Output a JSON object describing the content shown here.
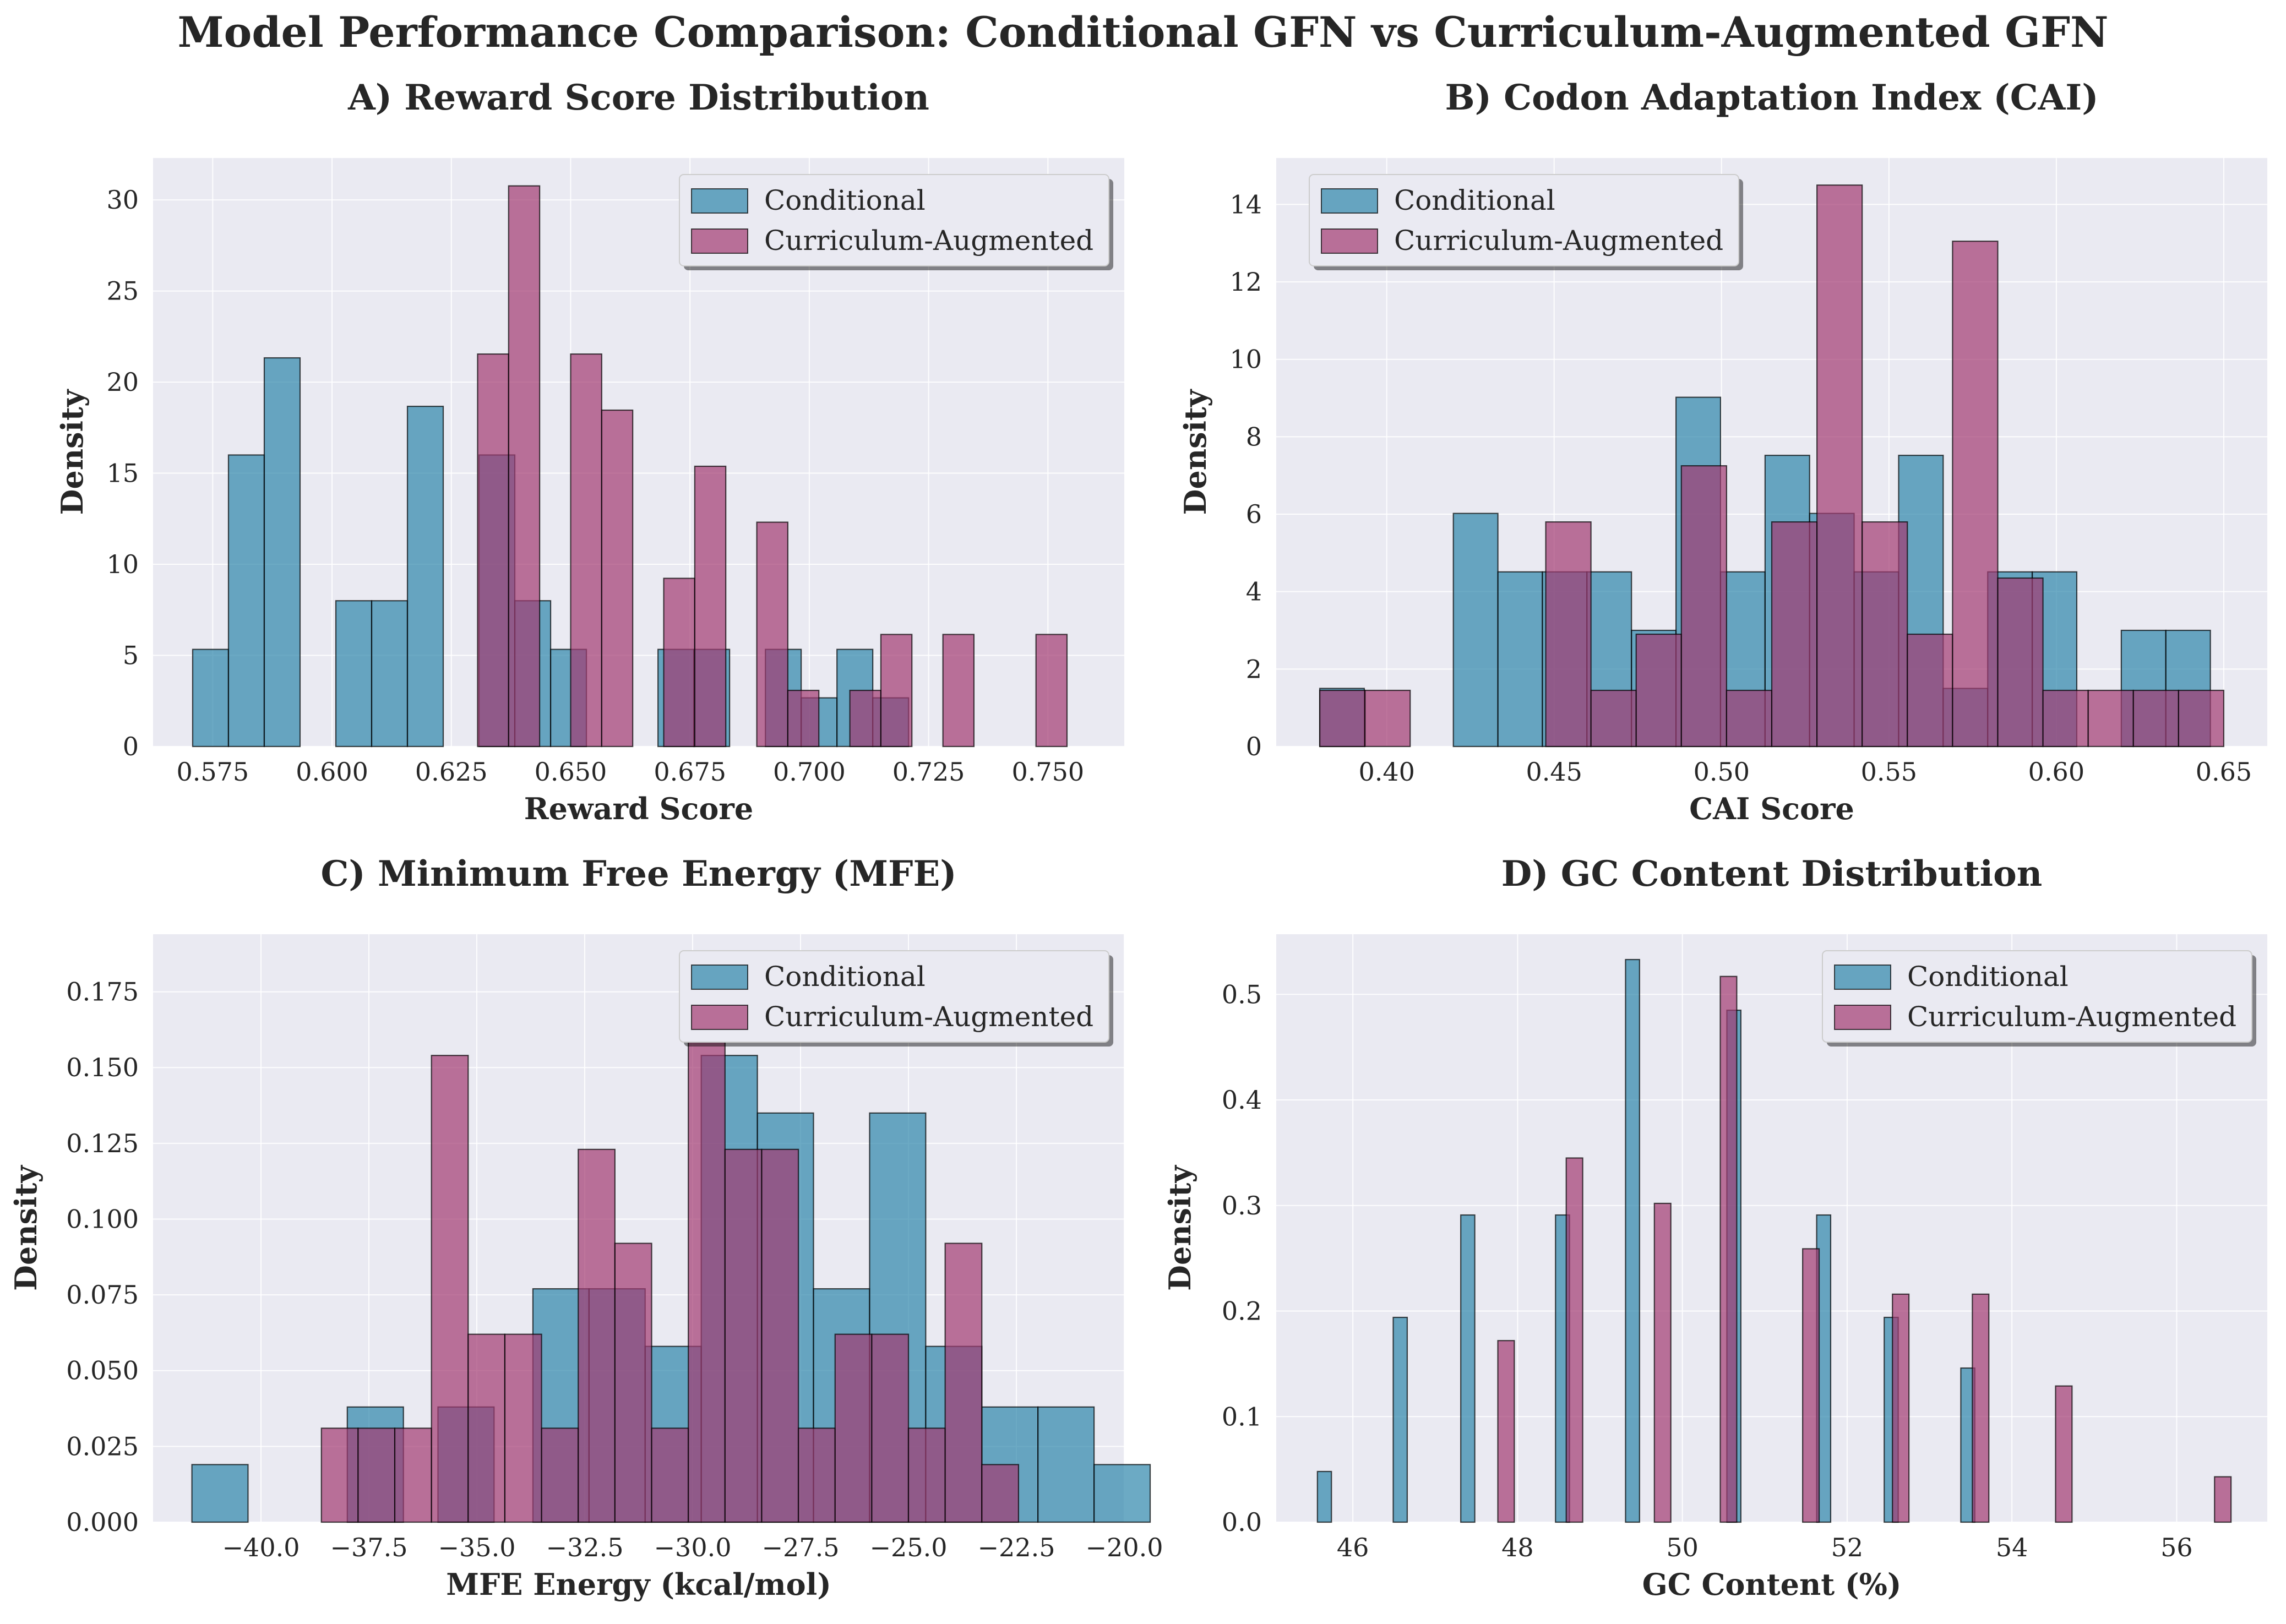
{
  "figure": {
    "title": "Model Performance Comparison: Conditional GFN vs Curriculum-Augmented GFN"
  },
  "colors": {
    "conditional": "#2e86ab",
    "curriculum": "#a23b72",
    "panel_bg": "#eaeaf2",
    "grid": "#ffffff",
    "edge": "#000000"
  },
  "chart_data": [
    {
      "type": "bar",
      "title": "A) Reward Score Distribution",
      "xlabel": "Reward Score",
      "ylabel": "Density",
      "xlim": [
        0.5625,
        0.766
      ],
      "ylim": [
        0,
        32.3
      ],
      "xticks": [
        0.575,
        0.6,
        0.625,
        0.65,
        0.675,
        0.7,
        0.725,
        0.75
      ],
      "xtick_labels": [
        "0.575",
        "0.600",
        "0.625",
        "0.650",
        "0.675",
        "0.700",
        "0.725",
        "0.750"
      ],
      "yticks": [
        0,
        5,
        10,
        15,
        20,
        25,
        30
      ],
      "ytick_labels": [
        "0",
        "5",
        "10",
        "15",
        "20",
        "25",
        "30"
      ],
      "legend": "top-right",
      "grid": true,
      "series": [
        {
          "name": "Conditional",
          "color_key": "conditional",
          "bin_width": 0.0075,
          "bins": [
            [
              0.5708,
              5.33
            ],
            [
              0.5783,
              16.0
            ],
            [
              0.5858,
              21.33
            ],
            [
              0.6008,
              8.0
            ],
            [
              0.6083,
              8.0
            ],
            [
              0.6158,
              18.67
            ],
            [
              0.6308,
              16.0
            ],
            [
              0.6383,
              8.0
            ],
            [
              0.6458,
              5.33
            ],
            [
              0.6683,
              5.33
            ],
            [
              0.6758,
              5.33
            ],
            [
              0.6908,
              5.33
            ],
            [
              0.6983,
              2.67
            ],
            [
              0.7058,
              5.33
            ],
            [
              0.7133,
              2.67
            ]
          ]
        },
        {
          "name": "Curriculum-Augmented",
          "color_key": "curriculum",
          "bin_width": 0.0065,
          "bins": [
            [
              0.6305,
              21.54
            ],
            [
              0.637,
              30.77
            ],
            [
              0.65,
              21.54
            ],
            [
              0.6565,
              18.46
            ],
            [
              0.6695,
              9.23
            ],
            [
              0.676,
              15.38
            ],
            [
              0.689,
              12.31
            ],
            [
              0.6955,
              3.08
            ],
            [
              0.7085,
              3.08
            ],
            [
              0.715,
              6.15
            ],
            [
              0.728,
              6.15
            ],
            [
              0.7475,
              6.15
            ]
          ]
        }
      ]
    },
    {
      "type": "bar",
      "title": "B) Codon Adaptation Index (CAI)",
      "xlabel": "CAI Score",
      "ylabel": "Density",
      "xlim": [
        0.367,
        0.663
      ],
      "ylim": [
        0,
        15.2
      ],
      "xticks": [
        0.4,
        0.45,
        0.5,
        0.55,
        0.6,
        0.65
      ],
      "xtick_labels": [
        "0.40",
        "0.45",
        "0.50",
        "0.55",
        "0.60",
        "0.65"
      ],
      "yticks": [
        0,
        2,
        4,
        6,
        8,
        10,
        12,
        14
      ],
      "ytick_labels": [
        "0",
        "2",
        "4",
        "6",
        "8",
        "10",
        "12",
        "14"
      ],
      "legend": "top-left",
      "grid": true,
      "series": [
        {
          "name": "Conditional",
          "color_key": "conditional",
          "bin_width": 0.0133,
          "bins": [
            [
              0.38,
              1.5
            ],
            [
              0.4199,
              6.02
            ],
            [
              0.4332,
              4.51
            ],
            [
              0.4465,
              4.51
            ],
            [
              0.4598,
              4.51
            ],
            [
              0.4731,
              3.0
            ],
            [
              0.4864,
              9.02
            ],
            [
              0.4997,
              4.51
            ],
            [
              0.513,
              7.52
            ],
            [
              0.5263,
              6.02
            ],
            [
              0.5396,
              4.51
            ],
            [
              0.5529,
              7.52
            ],
            [
              0.5662,
              1.5
            ],
            [
              0.5795,
              4.51
            ],
            [
              0.5928,
              4.51
            ],
            [
              0.6194,
              3.0
            ],
            [
              0.6327,
              3.0
            ]
          ]
        },
        {
          "name": "Curriculum-Augmented",
          "color_key": "curriculum",
          "bin_width": 0.0135,
          "bins": [
            [
              0.38,
              1.45
            ],
            [
              0.3935,
              1.45
            ],
            [
              0.4475,
              5.8
            ],
            [
              0.461,
              1.45
            ],
            [
              0.4745,
              2.9
            ],
            [
              0.488,
              7.25
            ],
            [
              0.5015,
              1.45
            ],
            [
              0.515,
              5.8
            ],
            [
              0.5285,
              14.5
            ],
            [
              0.542,
              5.8
            ],
            [
              0.5555,
              2.9
            ],
            [
              0.569,
              13.05
            ],
            [
              0.5825,
              4.35
            ],
            [
              0.596,
              1.45
            ],
            [
              0.6095,
              1.45
            ],
            [
              0.623,
              1.45
            ],
            [
              0.6365,
              1.45
            ]
          ]
        }
      ]
    },
    {
      "type": "bar",
      "title": "C) Minimum Free Energy (MFE)",
      "xlabel": "MFE Energy (kcal/mol)",
      "ylabel": "Density",
      "xlim": [
        -42.5,
        -20.0
      ],
      "ylim": [
        0,
        0.194
      ],
      "xticks": [
        -40,
        -37.5,
        -35,
        -32.5,
        -30,
        -27.5,
        -25,
        -22.5,
        -20
      ],
      "xtick_labels": [
        "−40.0",
        "−37.5",
        "−35.0",
        "−32.5",
        "−30.0",
        "−27.5",
        "−25.0",
        "−22.5",
        "−20.0"
      ],
      "yticks": [
        0,
        0.025,
        0.05,
        0.075,
        0.1,
        0.125,
        0.15,
        0.175
      ],
      "ytick_labels": [
        "0.000",
        "0.025",
        "0.050",
        "0.075",
        "0.100",
        "0.125",
        "0.150",
        "0.175"
      ],
      "legend": "top-right",
      "grid": true,
      "series": [
        {
          "name": "Conditional",
          "color_key": "conditional",
          "bin_width": 1.3,
          "bins": [
            [
              -41.6,
              0.019
            ],
            [
              -38.0,
              0.038
            ],
            [
              -35.9,
              0.038
            ],
            [
              -33.7,
              0.077
            ],
            [
              -32.4,
              0.077
            ],
            [
              -31.1,
              0.058
            ],
            [
              -29.8,
              0.154
            ],
            [
              -28.5,
              0.135
            ],
            [
              -27.2,
              0.077
            ],
            [
              -25.9,
              0.135
            ],
            [
              -24.6,
              0.058
            ],
            [
              -23.3,
              0.038
            ],
            [
              -22.0,
              0.038
            ],
            [
              -20.7,
              0.019
            ]
          ]
        },
        {
          "name": "Curriculum-Augmented",
          "color_key": "curriculum",
          "bin_width": 0.85,
          "bins": [
            [
              -38.6,
              0.031
            ],
            [
              -37.75,
              0.031
            ],
            [
              -36.9,
              0.031
            ],
            [
              -36.05,
              0.154
            ],
            [
              -35.2,
              0.062
            ],
            [
              -34.35,
              0.062
            ],
            [
              -33.5,
              0.031
            ],
            [
              -32.65,
              0.123
            ],
            [
              -31.8,
              0.092
            ],
            [
              -30.95,
              0.031
            ],
            [
              -30.1,
              0.185
            ],
            [
              -29.25,
              0.123
            ],
            [
              -28.4,
              0.123
            ],
            [
              -27.55,
              0.031
            ],
            [
              -26.7,
              0.062
            ],
            [
              -25.85,
              0.062
            ],
            [
              -25.0,
              0.031
            ],
            [
              -24.15,
              0.092
            ],
            [
              -23.3,
              0.019
            ]
          ]
        }
      ]
    },
    {
      "type": "bar",
      "title": "D) GC Content Distribution",
      "xlabel": "GC Content (%)",
      "ylabel": "Density",
      "xlim": [
        45.07,
        57.1
      ],
      "ylim": [
        0,
        0.557
      ],
      "xticks": [
        46,
        48,
        50,
        52,
        54,
        56
      ],
      "xtick_labels": [
        "46",
        "48",
        "50",
        "52",
        "54",
        "56"
      ],
      "yticks": [
        0,
        0.1,
        0.2,
        0.3,
        0.4,
        0.5
      ],
      "ytick_labels": [
        "0.0",
        "0.1",
        "0.2",
        "0.3",
        "0.4",
        "0.5"
      ],
      "legend": "top-right",
      "grid": true,
      "series": [
        {
          "name": "Conditional",
          "color_key": "conditional",
          "bin_width": 0.17,
          "bins": [
            [
              45.57,
              0.048
            ],
            [
              46.49,
              0.194
            ],
            [
              47.31,
              0.291
            ],
            [
              48.46,
              0.291
            ],
            [
              49.31,
              0.533
            ],
            [
              50.54,
              0.485
            ],
            [
              51.63,
              0.291
            ],
            [
              52.45,
              0.194
            ],
            [
              53.38,
              0.146
            ]
          ]
        },
        {
          "name": "Curriculum-Augmented",
          "color_key": "curriculum",
          "bin_width": 0.2,
          "bins": [
            [
              47.76,
              0.172
            ],
            [
              48.59,
              0.345
            ],
            [
              49.66,
              0.302
            ],
            [
              50.46,
              0.517
            ],
            [
              51.46,
              0.259
            ],
            [
              52.55,
              0.216
            ],
            [
              53.52,
              0.216
            ],
            [
              54.53,
              0.129
            ],
            [
              56.46,
              0.043
            ]
          ]
        }
      ]
    }
  ]
}
